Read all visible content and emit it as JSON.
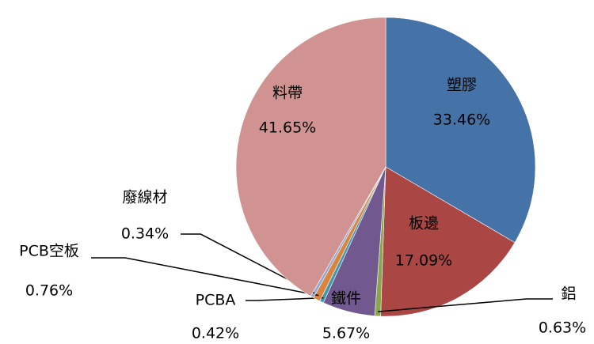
{
  "chart_data": {
    "type": "pie",
    "categories": [
      "塑膠",
      "板邊",
      "鋁",
      "鐵件",
      "PCBA",
      "PCB空板",
      "廢線材",
      "料帶"
    ],
    "values": [
      33.46,
      17.09,
      0.63,
      5.67,
      0.42,
      0.76,
      0.34,
      41.65
    ],
    "value_labels": [
      "33.46%",
      "17.09%",
      "0.63%",
      "5.67%",
      "0.42%",
      "0.76%",
      "0.34%",
      "41.65%"
    ],
    "colors": [
      "#4572a7",
      "#aa4643",
      "#89a54e",
      "#71588f",
      "#4198af",
      "#db843d",
      "#93a9cf",
      "#d19392"
    ]
  }
}
